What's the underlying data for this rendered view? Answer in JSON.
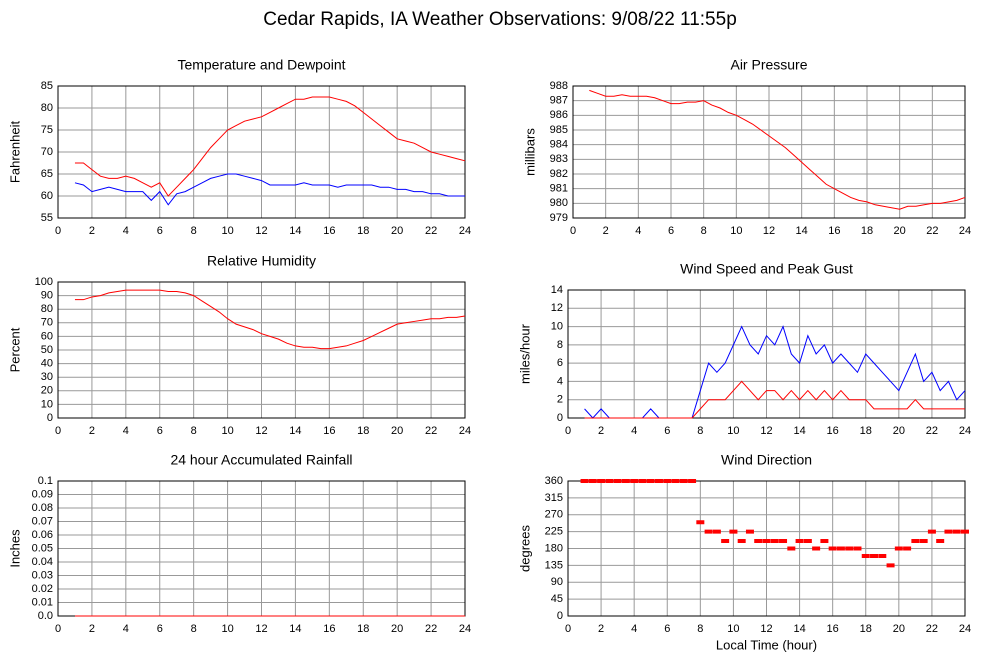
{
  "title": "Cedar Rapids, IA Weather Observations: 9/08/22 11:55p",
  "chart_data": [
    {
      "type": "line",
      "title": "Temperature and Dewpoint",
      "ylabel": "Fahrenheit",
      "x": [
        1,
        1.5,
        2,
        2.5,
        3,
        3.5,
        4,
        4.5,
        5,
        5.5,
        6,
        6.5,
        7,
        7.5,
        8,
        8.5,
        9,
        9.5,
        10,
        10.5,
        11,
        11.5,
        12,
        12.5,
        13,
        13.5,
        14,
        14.5,
        15,
        15.5,
        16,
        16.5,
        17,
        17.5,
        18,
        18.5,
        19,
        19.5,
        20,
        20.5,
        21,
        21.5,
        22,
        22.5,
        23,
        23.5,
        24
      ],
      "series": [
        {
          "color": "#ff0000",
          "values": [
            67.5,
            67.5,
            66,
            64.5,
            64,
            64,
            64.5,
            64,
            63,
            62,
            63,
            60,
            62,
            64,
            66,
            68.5,
            71,
            73,
            75,
            76,
            77,
            77.5,
            78,
            79,
            80,
            81,
            82,
            82,
            82.5,
            82.5,
            82.5,
            82,
            81.5,
            80.5,
            79,
            77.5,
            76,
            74.5,
            73,
            72.5,
            72,
            71,
            70,
            69.5,
            69,
            68.5,
            68
          ]
        },
        {
          "color": "#0000ff",
          "values": [
            63,
            62.5,
            61,
            61.5,
            62,
            61.5,
            61,
            61,
            61,
            59,
            61,
            58,
            60.5,
            61,
            62,
            63,
            64,
            64.5,
            65,
            65,
            64.5,
            64,
            63.5,
            62.5,
            62.5,
            62.5,
            62.5,
            63,
            62.5,
            62.5,
            62.5,
            62,
            62.5,
            62.5,
            62.5,
            62.5,
            62,
            62,
            61.5,
            61.5,
            61,
            61,
            60.5,
            60.5,
            60,
            60,
            60
          ]
        }
      ],
      "xlim": [
        0,
        24
      ],
      "xticks": [
        0,
        2,
        4,
        6,
        8,
        10,
        12,
        14,
        16,
        18,
        20,
        22,
        24
      ],
      "ylim": [
        55,
        85
      ],
      "yticks": [
        55,
        60,
        65,
        70,
        75,
        80,
        85
      ],
      "grid": true
    },
    {
      "type": "line",
      "title": "Air Pressure",
      "ylabel": "millibars",
      "x": [
        1,
        1.5,
        2,
        2.5,
        3,
        3.5,
        4,
        4.5,
        5,
        5.5,
        6,
        6.5,
        7,
        7.5,
        8,
        8.5,
        9,
        9.5,
        10,
        10.5,
        11,
        11.5,
        12,
        12.5,
        13,
        13.5,
        14,
        14.5,
        15,
        15.5,
        16,
        16.5,
        17,
        17.5,
        18,
        18.5,
        19,
        19.5,
        20,
        20.5,
        21,
        21.5,
        22,
        22.5,
        23,
        23.5,
        24
      ],
      "series": [
        {
          "color": "#ff0000",
          "values": [
            987.7,
            987.5,
            987.3,
            987.3,
            987.4,
            987.3,
            987.3,
            987.3,
            987.2,
            987,
            986.8,
            986.8,
            986.9,
            986.9,
            987,
            986.7,
            986.5,
            986.2,
            986,
            985.7,
            985.4,
            985,
            984.6,
            984.2,
            983.8,
            983.3,
            982.8,
            982.3,
            981.8,
            981.3,
            981,
            980.7,
            980.4,
            980.2,
            980.1,
            979.9,
            979.8,
            979.7,
            979.6,
            979.8,
            979.8,
            979.9,
            980,
            980,
            980.1,
            980.2,
            980.4
          ]
        }
      ],
      "xlim": [
        0,
        24
      ],
      "xticks": [
        0,
        2,
        4,
        6,
        8,
        10,
        12,
        14,
        16,
        18,
        20,
        22,
        24
      ],
      "ylim": [
        979,
        988
      ],
      "yticks": [
        979,
        980,
        981,
        982,
        983,
        984,
        985,
        986,
        987,
        988
      ],
      "grid": true
    },
    {
      "type": "line",
      "title": "Relative Humidity",
      "ylabel": "Percent",
      "x": [
        1,
        1.5,
        2,
        2.5,
        3,
        3.5,
        4,
        4.5,
        5,
        5.5,
        6,
        6.5,
        7,
        7.5,
        8,
        8.5,
        9,
        9.5,
        10,
        10.5,
        11,
        11.5,
        12,
        12.5,
        13,
        13.5,
        14,
        14.5,
        15,
        15.5,
        16,
        16.5,
        17,
        17.5,
        18,
        18.5,
        19,
        19.5,
        20,
        20.5,
        21,
        21.5,
        22,
        22.5,
        23,
        23.5,
        24
      ],
      "series": [
        {
          "color": "#ff0000",
          "values": [
            87,
            87,
            89,
            90,
            92,
            93,
            94,
            94,
            94,
            94,
            94,
            93,
            93,
            92,
            90,
            86,
            82,
            78,
            73,
            69,
            67,
            65,
            62,
            60,
            58,
            55,
            53,
            52,
            52,
            51,
            51,
            52,
            53,
            55,
            57,
            60,
            63,
            66,
            69,
            70,
            71,
            72,
            73,
            73,
            74,
            74,
            75
          ]
        }
      ],
      "xlim": [
        0,
        24
      ],
      "xticks": [
        0,
        2,
        4,
        6,
        8,
        10,
        12,
        14,
        16,
        18,
        20,
        22,
        24
      ],
      "ylim": [
        0,
        100
      ],
      "yticks": [
        0,
        10,
        20,
        30,
        40,
        50,
        60,
        70,
        80,
        90,
        100
      ],
      "grid": true
    },
    {
      "type": "line",
      "title": "Wind Speed and Peak Gust",
      "ylabel": "miles/hour",
      "x": [
        1,
        1.5,
        2,
        2.5,
        3,
        3.5,
        4,
        4.5,
        5,
        5.5,
        6,
        6.5,
        7,
        7.5,
        8,
        8.5,
        9,
        9.5,
        10,
        10.5,
        11,
        11.5,
        12,
        12.5,
        13,
        13.5,
        14,
        14.5,
        15,
        15.5,
        16,
        16.5,
        17,
        17.5,
        18,
        18.5,
        19,
        19.5,
        20,
        20.5,
        21,
        21.5,
        22,
        22.5,
        23,
        23.5,
        24
      ],
      "series": [
        {
          "color": "#0000ff",
          "values": [
            1,
            0,
            1,
            0,
            0,
            0,
            0,
            0,
            1,
            0,
            0,
            0,
            0,
            0,
            3,
            6,
            5,
            6,
            8,
            10,
            8,
            7,
            9,
            8,
            10,
            7,
            6,
            9,
            7,
            8,
            6,
            7,
            6,
            5,
            7,
            6,
            5,
            4,
            3,
            5,
            7,
            4,
            5,
            3,
            4,
            2,
            3
          ]
        },
        {
          "color": "#ff0000",
          "values": [
            0,
            0,
            0,
            0,
            0,
            0,
            0,
            0,
            0,
            0,
            0,
            0,
            0,
            0,
            1,
            2,
            2,
            2,
            3,
            4,
            3,
            2,
            3,
            3,
            2,
            3,
            2,
            3,
            2,
            3,
            2,
            3,
            2,
            2,
            2,
            1,
            1,
            1,
            1,
            1,
            2,
            1,
            1,
            1,
            1,
            1,
            1
          ]
        }
      ],
      "xlim": [
        0,
        24
      ],
      "xticks": [
        0,
        2,
        4,
        6,
        8,
        10,
        12,
        14,
        16,
        18,
        20,
        22,
        24
      ],
      "ylim": [
        0,
        14
      ],
      "yticks": [
        0,
        2,
        4,
        6,
        8,
        10,
        12,
        14
      ],
      "grid": true
    },
    {
      "type": "line",
      "title": "24 hour Accumulated Rainfall",
      "ylabel": "Inches",
      "x": [
        1,
        2,
        3,
        4,
        5,
        6,
        7,
        8,
        9,
        10,
        11,
        12,
        13,
        14,
        15,
        16,
        17,
        18,
        19,
        20,
        21,
        22,
        23,
        24
      ],
      "series": [
        {
          "color": "#ff0000",
          "values": [
            0,
            0,
            0,
            0,
            0,
            0,
            0,
            0,
            0,
            0,
            0,
            0,
            0,
            0,
            0,
            0,
            0,
            0,
            0,
            0,
            0,
            0,
            0,
            0
          ]
        }
      ],
      "xlim": [
        0,
        24
      ],
      "xticks": [
        0,
        2,
        4,
        6,
        8,
        10,
        12,
        14,
        16,
        18,
        20,
        22,
        24
      ],
      "ylim": [
        0,
        0.1
      ],
      "yticks": [
        {
          "value": 0,
          "label": "0.0"
        },
        0.01,
        0.02,
        0.03,
        0.04,
        0.05,
        0.06,
        0.07,
        0.08,
        0.09,
        0.1
      ],
      "grid": true
    },
    {
      "type": "scatter",
      "title": "Wind Direction",
      "ylabel": "degrees",
      "xlabel": "Local Time (hour)",
      "x": [
        1,
        1.5,
        2,
        2.5,
        3,
        3.5,
        4,
        4.5,
        5,
        5.5,
        6,
        6.5,
        7,
        7.5,
        8,
        8.5,
        9,
        9.5,
        10,
        10.5,
        11,
        11.5,
        12,
        12.5,
        13,
        13.5,
        14,
        14.5,
        15,
        15.5,
        16,
        16.5,
        17,
        17.5,
        18,
        18.5,
        19,
        19.5,
        20,
        20.5,
        21,
        21.5,
        22,
        22.5,
        23,
        23.5,
        24
      ],
      "series": [
        {
          "color": "#ff0000",
          "values": [
            360,
            360,
            360,
            360,
            360,
            360,
            360,
            360,
            360,
            360,
            360,
            360,
            360,
            360,
            250,
            225,
            225,
            200,
            225,
            200,
            225,
            200,
            200,
            200,
            200,
            180,
            200,
            200,
            180,
            200,
            180,
            180,
            180,
            180,
            160,
            160,
            160,
            135,
            180,
            180,
            200,
            200,
            225,
            200,
            225,
            225,
            225
          ]
        }
      ],
      "xlim": [
        0,
        24
      ],
      "xticks": [
        0,
        2,
        4,
        6,
        8,
        10,
        12,
        14,
        16,
        18,
        20,
        22,
        24
      ],
      "ylim": [
        0,
        360
      ],
      "yticks": [
        0,
        45,
        90,
        135,
        180,
        225,
        270,
        315,
        360
      ],
      "grid": true
    }
  ]
}
